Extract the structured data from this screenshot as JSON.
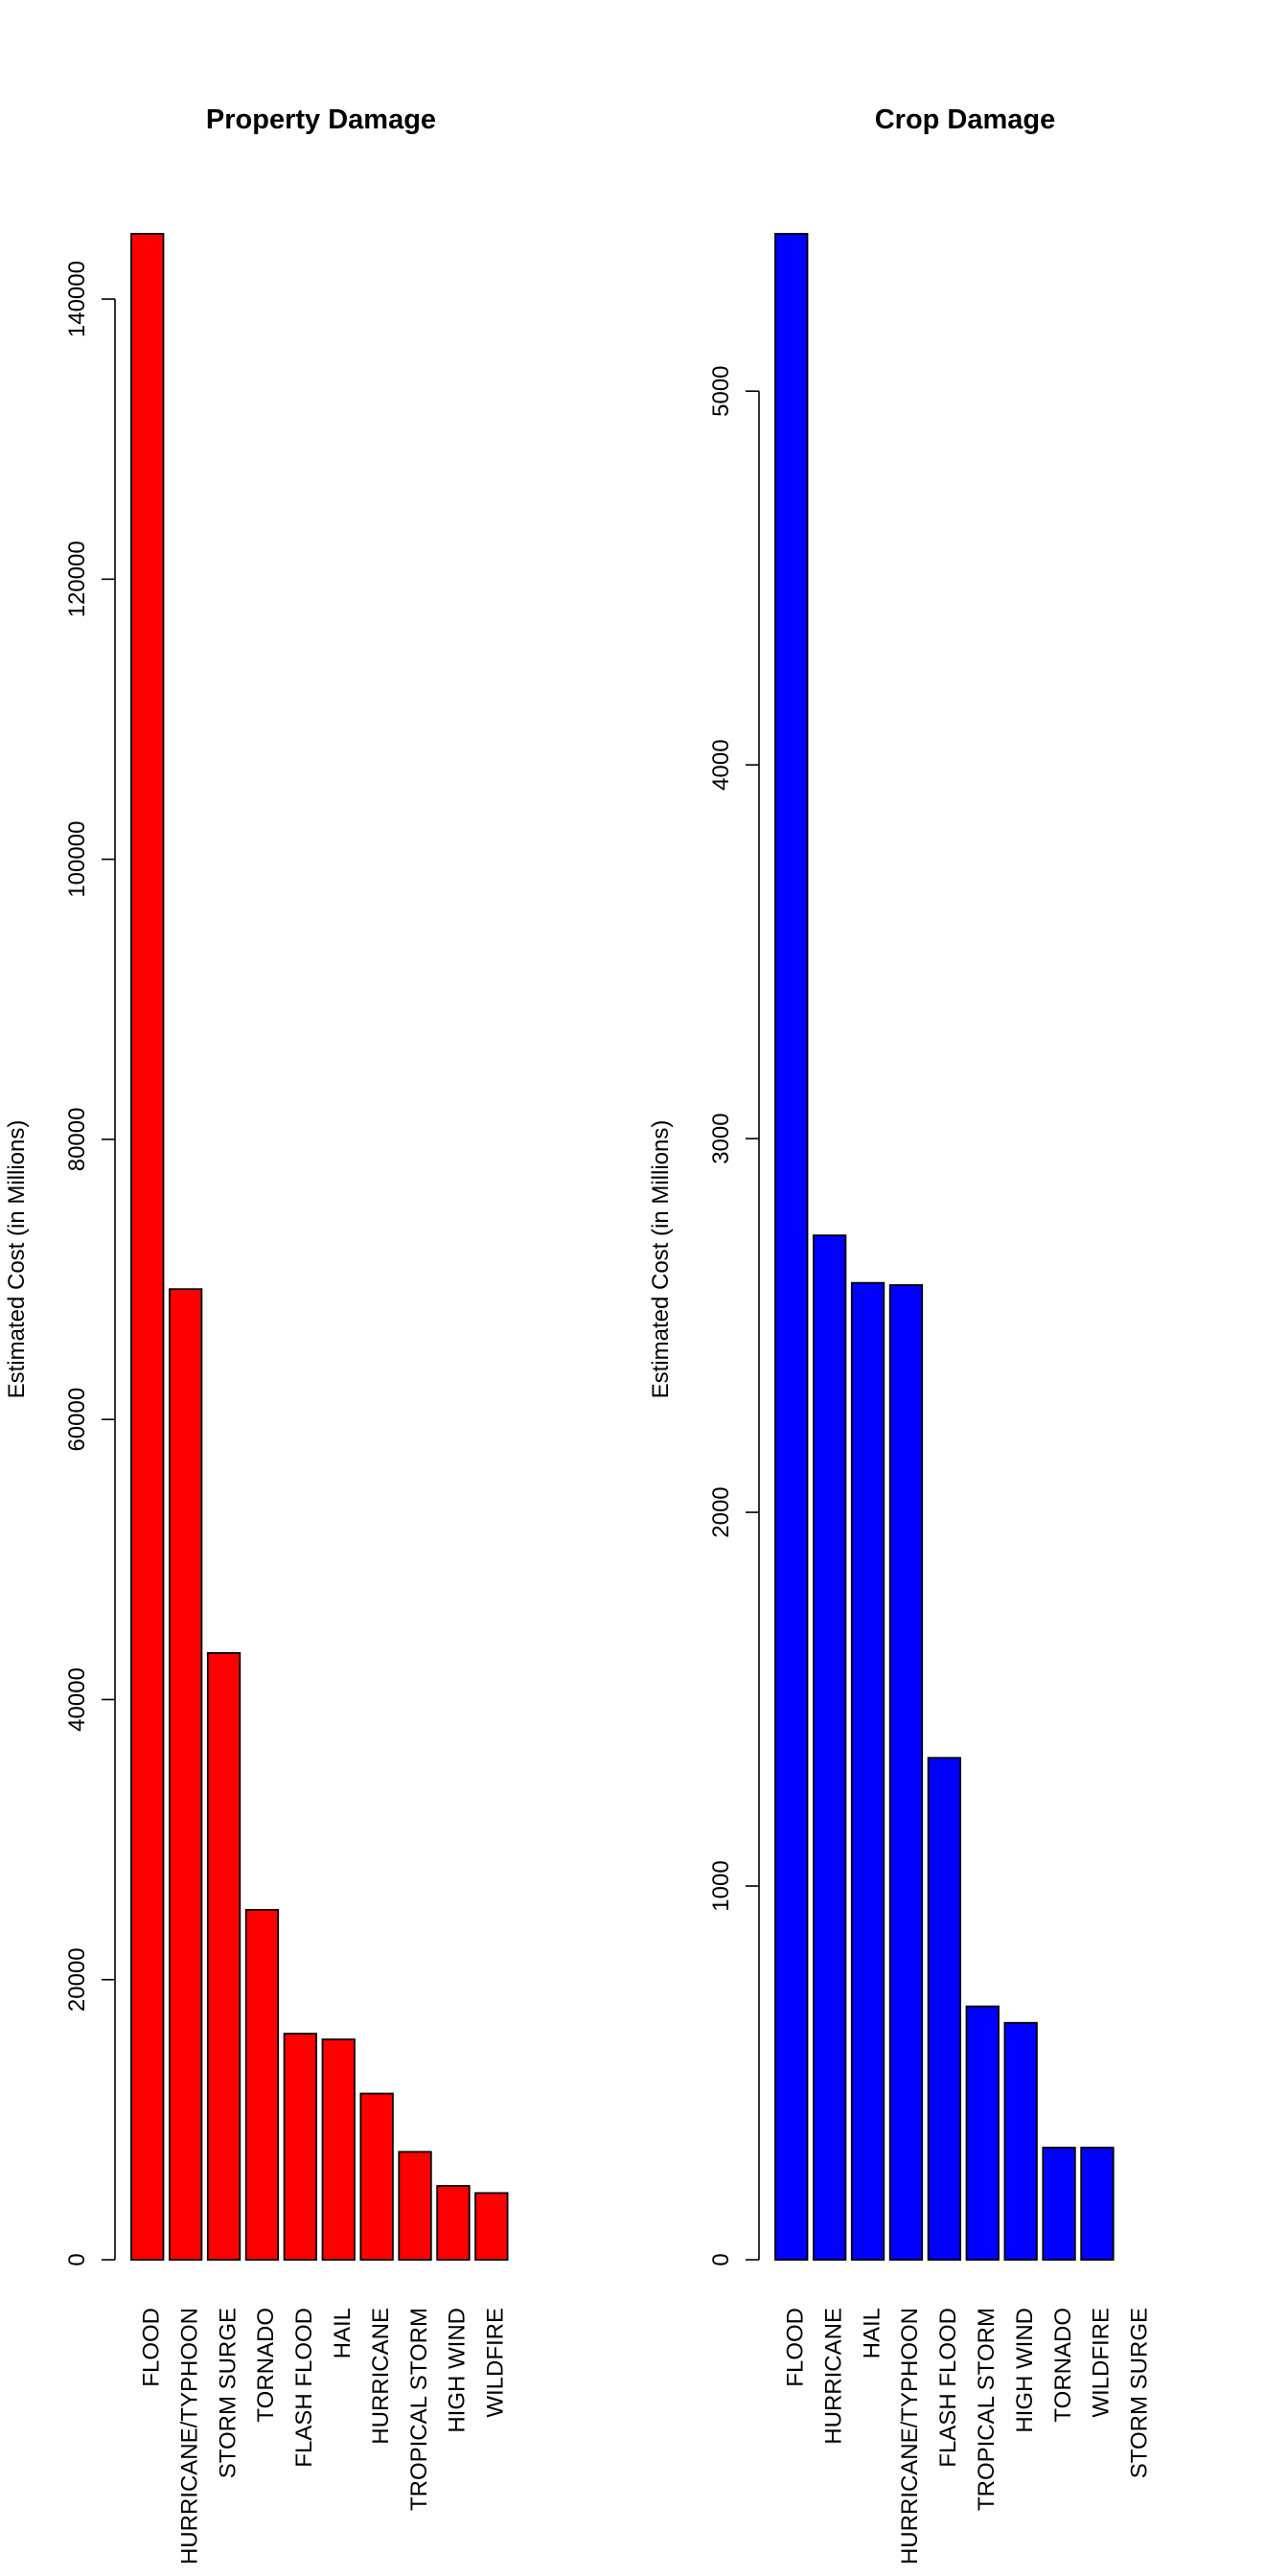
{
  "chart_data": [
    {
      "type": "bar",
      "title": "Property Damage",
      "xlabel": "",
      "ylabel": "Estimated Cost  (in Millions)",
      "color": "#ff0000",
      "categories": [
        "FLOOD",
        "HURRICANE/TYPHOON",
        "STORM SURGE",
        "TORNADO",
        "FLASH FLOOD",
        "HAIL",
        "HURRICANE",
        "TROPICAL STORM",
        "HIGH WIND",
        "WILDFIRE"
      ],
      "values": [
        144658,
        69306,
        43324,
        24986,
        16141,
        15733,
        11868,
        7704,
        5270,
        4765
      ],
      "ylim": [
        0,
        144658
      ],
      "yticks": [
        0,
        20000,
        40000,
        60000,
        80000,
        100000,
        120000,
        140000
      ],
      "ytick_labels": [
        "0",
        "20000",
        "40000",
        "60000",
        "80000",
        "100000",
        "120000",
        "140000"
      ]
    },
    {
      "type": "bar",
      "title": "Crop Damage",
      "xlabel": "",
      "ylabel": "Estimated Cost (in Millions)",
      "color": "#0000ff",
      "categories": [
        "FLOOD",
        "HURRICANE",
        "HAIL",
        "HURRICANE/TYPHOON",
        "FLASH FLOOD",
        "TROPICAL STORM",
        "HIGH WIND",
        "TORNADO",
        "WILDFIRE",
        "STORM SURGE"
      ],
      "values": [
        5421,
        2741,
        2614,
        2608,
        1343,
        678,
        634,
        300,
        300,
        0
      ],
      "ylim": [
        0,
        5421
      ],
      "yticks": [
        0,
        1000,
        2000,
        3000,
        4000,
        5000
      ],
      "ytick_labels": [
        "0",
        "1000",
        "2000",
        "3000",
        "4000",
        "5000"
      ]
    }
  ]
}
